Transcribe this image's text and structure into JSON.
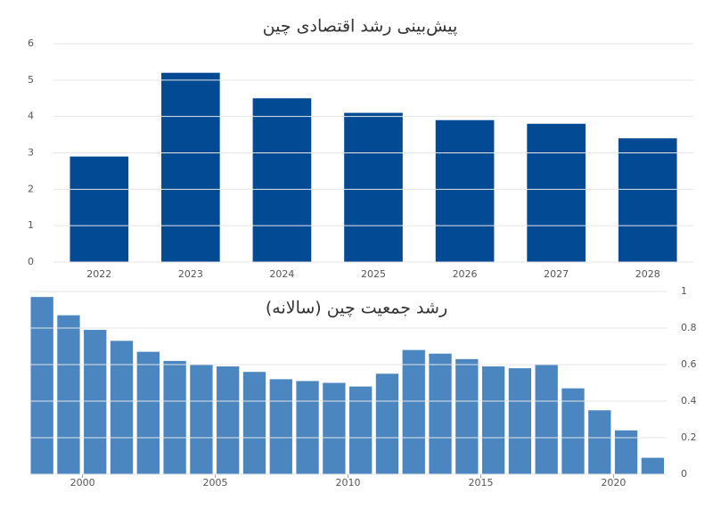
{
  "chart_data": [
    {
      "type": "bar",
      "title": "پیش‌بینی رشد اقتصادی چین",
      "categories": [
        "2022",
        "2023",
        "2024",
        "2025",
        "2026",
        "2027",
        "2028"
      ],
      "values": [
        2.9,
        5.2,
        4.5,
        4.1,
        3.9,
        3.8,
        3.4
      ],
      "color": "#024a94",
      "ylim": [
        0,
        6
      ],
      "yticks": [
        0,
        1,
        2,
        3,
        4,
        5,
        6
      ],
      "grid": true
    },
    {
      "type": "bar",
      "title": "رشد جمعیت چین (سالانه)",
      "x": [
        1998,
        1999,
        2000,
        2001,
        2002,
        2003,
        2004,
        2005,
        2006,
        2007,
        2008,
        2009,
        2010,
        2011,
        2012,
        2013,
        2014,
        2015,
        2016,
        2017,
        2018,
        2019,
        2020,
        2021
      ],
      "values": [
        0.97,
        0.87,
        0.79,
        0.73,
        0.67,
        0.62,
        0.6,
        0.59,
        0.56,
        0.52,
        0.51,
        0.5,
        0.48,
        0.55,
        0.68,
        0.66,
        0.63,
        0.59,
        0.58,
        0.6,
        0.47,
        0.35,
        0.24,
        0.09
      ],
      "color": "#4b86c0",
      "xlim": [
        1998,
        2022
      ],
      "xticks": [
        2000,
        2005,
        2010,
        2015,
        2020
      ],
      "ylim": [
        0,
        1
      ],
      "yticks": [
        0,
        0.2,
        0.4,
        0.6,
        0.8,
        1
      ],
      "grid": true,
      "y_axis_side": "right"
    }
  ]
}
